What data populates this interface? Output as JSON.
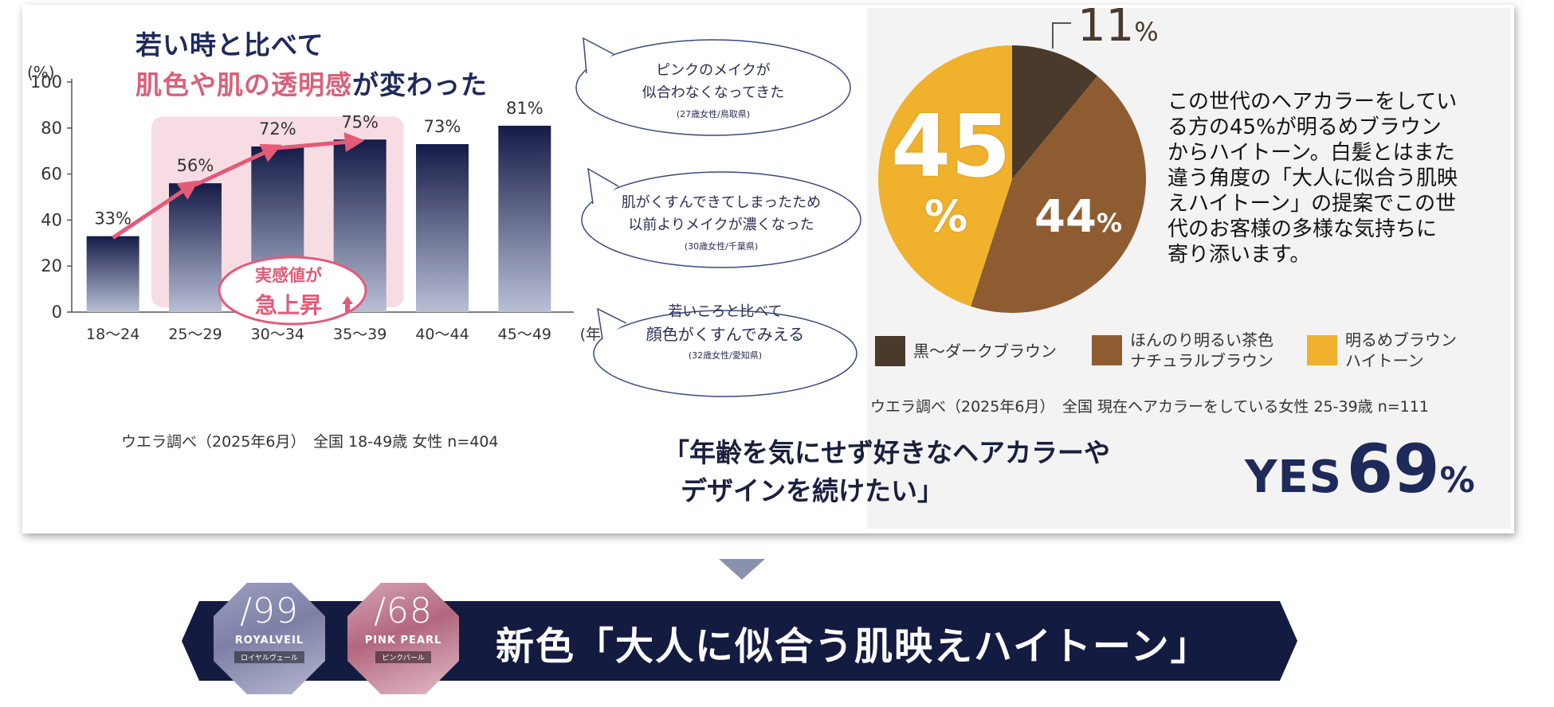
{
  "left_panel": {
    "title_line1": "若い時と比べて",
    "title_line2_highlight": "肌色や肌の透明感",
    "title_line2_rest": "が変わった",
    "unit_label": "(%)",
    "x_axis_unit": "(年齢)",
    "highlight_badge_line1": "実感値が",
    "highlight_badge_line2": "急上昇",
    "note": "ウエラ調べ（2025年6月）　全国 18-49歳 女性 n=404"
  },
  "chart_data": [
    {
      "type": "bar",
      "categories": [
        "18〜24",
        "25〜29",
        "30〜34",
        "35〜39",
        "40〜44",
        "45〜49"
      ],
      "values": [
        33,
        56,
        72,
        75,
        73,
        81
      ],
      "value_labels": [
        "33%",
        "56%",
        "72%",
        "75%",
        "73%",
        "81%"
      ],
      "ylim": [
        0,
        100
      ],
      "yticks": [
        0,
        20,
        40,
        60,
        80,
        100
      ],
      "ylabel": "(%)",
      "xlabel": "(年齢)",
      "highlighted_categories": [
        "25〜29",
        "30〜34",
        "35〜39"
      ],
      "bar_color_top": "#141b47",
      "bar_color_bottom": "#b9bfd6"
    },
    {
      "type": "pie",
      "categories": [
        "黒〜ダークブラウン",
        "ほんのり明るい茶色 ナチュラルブラウン",
        "明るめブラウン ハイトーン"
      ],
      "values": [
        11,
        44,
        45
      ],
      "value_labels": [
        "11%",
        "44%",
        "45%"
      ],
      "colors": [
        "#4a3a2c",
        "#8f5c31",
        "#f0b22c"
      ]
    }
  ],
  "bubbles": [
    {
      "line1": "ピンクのメイクが",
      "line2": "似合わなくなってきた",
      "sub": "(27歳女性/鳥取県)"
    },
    {
      "line1": "肌がくすんできてしまったため",
      "line2": "以前よりメイクが濃くなった",
      "sub": "(30歳女性/千葉県)"
    },
    {
      "line1": "若いころと比べて",
      "line2": "顔色がくすんでみえる",
      "sub": "(32歳女性/愛知県)"
    }
  ],
  "pie_labels": {
    "top_num": "11",
    "top_unit": "%",
    "right_num": "44",
    "right_unit": "%",
    "left_num": "45",
    "left_unit": "%"
  },
  "description": {
    "line1": "この世代のヘアカラーをしてい",
    "line2": "る方の45%が明るめブラウン",
    "line3": "からハイトーン。白髪とはまた",
    "line4": "違う角度の「大人に似合う肌映",
    "line5": "えハイトーン」の提案でこの世",
    "line6": "代のお客様の多様な気持ちに",
    "line7": "寄り添います。"
  },
  "legend": [
    {
      "line1": "黒〜ダークブラウン",
      "line2": "",
      "color": "#4a3a2c"
    },
    {
      "line1": "ほんのり明るい茶色",
      "line2": "ナチュラルブラウン",
      "color": "#8f5c31"
    },
    {
      "line1": "明るめブラウン",
      "line2": "ハイトーン",
      "color": "#f0b22c"
    }
  ],
  "pie_note": "ウエラ調べ（2025年6月）　全国 現在ヘアカラーをしている女性 25-39歳 n=111",
  "quote": {
    "line1": "「年齢を気にせず好きなヘアカラーや",
    "line2": "デザインを続けたい」",
    "yes_word": "YES",
    "yes_num": "69",
    "yes_unit": "%"
  },
  "banner": {
    "text": "新色「大人に似合う肌映えハイトーン」",
    "badges": [
      {
        "number": "/99",
        "name": "ROYALVEIL",
        "kana": "ロイヤルヴェール"
      },
      {
        "number": "/68",
        "name": "PINK PEARL",
        "kana": "ピンクパール"
      }
    ]
  }
}
